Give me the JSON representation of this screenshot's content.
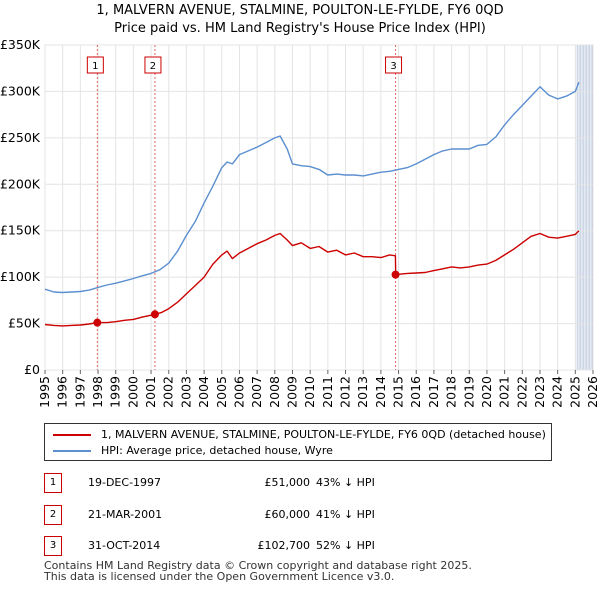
{
  "chart_data": {
    "type": "line",
    "title": "1, MALVERN AVENUE, STALMINE, POULTON-LE-FYLDE, FY6 0QD",
    "subtitle": "Price paid vs. HM Land Registry's House Price Index (HPI)",
    "x_range": [
      1995,
      2026
    ],
    "y_range": [
      0,
      350000
    ],
    "x_ticks": [
      "1995",
      "1996",
      "1997",
      "1998",
      "1999",
      "2000",
      "2001",
      "2002",
      "2003",
      "2004",
      "2005",
      "2006",
      "2007",
      "2008",
      "2009",
      "2010",
      "2011",
      "2012",
      "2013",
      "2014",
      "2015",
      "2016",
      "2017",
      "2018",
      "2019",
      "2020",
      "2021",
      "2022",
      "2023",
      "2024",
      "2025",
      "2026"
    ],
    "y_ticks": [
      {
        "value": 0,
        "label": "£0"
      },
      {
        "value": 50000,
        "label": "£50K"
      },
      {
        "value": 100000,
        "label": "£100K"
      },
      {
        "value": 150000,
        "label": "£150K"
      },
      {
        "value": 200000,
        "label": "£200K"
      },
      {
        "value": 250000,
        "label": "£250K"
      },
      {
        "value": 300000,
        "label": "£300K"
      },
      {
        "value": 350000,
        "label": "£350K"
      }
    ],
    "grid": true,
    "future_shading_from": 2025.1,
    "series": [
      {
        "name": "1, MALVERN AVENUE, STALMINE, POULTON-LE-FYLDE, FY6 0QD (detached house)",
        "color": "#cc0000",
        "points": [
          [
            1995.0,
            49000
          ],
          [
            1995.5,
            48000
          ],
          [
            1996.0,
            47500
          ],
          [
            1996.5,
            48000
          ],
          [
            1997.0,
            48500
          ],
          [
            1997.5,
            49500
          ],
          [
            1997.96,
            51000
          ],
          [
            1998.5,
            51000
          ],
          [
            1999.0,
            52000
          ],
          [
            1999.5,
            53500
          ],
          [
            2000.0,
            54500
          ],
          [
            2000.5,
            57000
          ],
          [
            2001.0,
            59000
          ],
          [
            2001.22,
            60000
          ],
          [
            2001.6,
            62000
          ],
          [
            2002.0,
            66000
          ],
          [
            2002.5,
            73000
          ],
          [
            2003.0,
            82000
          ],
          [
            2003.5,
            91000
          ],
          [
            2004.0,
            100000
          ],
          [
            2004.5,
            114000
          ],
          [
            2005.0,
            124000
          ],
          [
            2005.3,
            128000
          ],
          [
            2005.6,
            120000
          ],
          [
            2006.0,
            126000
          ],
          [
            2006.5,
            131000
          ],
          [
            2007.0,
            136000
          ],
          [
            2007.5,
            140000
          ],
          [
            2008.0,
            145000
          ],
          [
            2008.3,
            147000
          ],
          [
            2008.7,
            140000
          ],
          [
            2009.0,
            134000
          ],
          [
            2009.5,
            137000
          ],
          [
            2010.0,
            131000
          ],
          [
            2010.5,
            133000
          ],
          [
            2011.0,
            127000
          ],
          [
            2011.5,
            129000
          ],
          [
            2012.0,
            124000
          ],
          [
            2012.5,
            126000
          ],
          [
            2013.0,
            122000
          ],
          [
            2013.5,
            122000
          ],
          [
            2014.0,
            121000
          ],
          [
            2014.5,
            124000
          ],
          [
            2014.82,
            123000
          ],
          [
            2014.84,
            102700
          ],
          [
            2015.5,
            104000
          ],
          [
            2016.0,
            104500
          ],
          [
            2016.5,
            105000
          ],
          [
            2017.0,
            107000
          ],
          [
            2017.5,
            109000
          ],
          [
            2018.0,
            111000
          ],
          [
            2018.5,
            110000
          ],
          [
            2019.0,
            111000
          ],
          [
            2019.5,
            113000
          ],
          [
            2020.0,
            114000
          ],
          [
            2020.5,
            118000
          ],
          [
            2021.0,
            124000
          ],
          [
            2021.5,
            130000
          ],
          [
            2022.0,
            137000
          ],
          [
            2022.5,
            144000
          ],
          [
            2023.0,
            147000
          ],
          [
            2023.5,
            143000
          ],
          [
            2024.0,
            142000
          ],
          [
            2024.5,
            144000
          ],
          [
            2025.0,
            146000
          ],
          [
            2025.2,
            150000
          ]
        ]
      },
      {
        "name": "HPI: Average price, detached house, Wyre",
        "color": "#5b8fd0",
        "points": [
          [
            1995.0,
            87000
          ],
          [
            1995.5,
            84000
          ],
          [
            1996.0,
            83500
          ],
          [
            1996.5,
            84000
          ],
          [
            1997.0,
            84500
          ],
          [
            1997.5,
            86000
          ],
          [
            1998.0,
            89000
          ],
          [
            1998.5,
            91500
          ],
          [
            1999.0,
            93500
          ],
          [
            1999.5,
            96000
          ],
          [
            2000.0,
            98500
          ],
          [
            2000.5,
            101500
          ],
          [
            2001.0,
            104000
          ],
          [
            2001.5,
            108000
          ],
          [
            2002.0,
            115000
          ],
          [
            2002.5,
            128000
          ],
          [
            2003.0,
            145000
          ],
          [
            2003.5,
            160000
          ],
          [
            2004.0,
            180000
          ],
          [
            2004.5,
            198000
          ],
          [
            2005.0,
            218000
          ],
          [
            2005.3,
            224000
          ],
          [
            2005.6,
            222000
          ],
          [
            2006.0,
            232000
          ],
          [
            2006.5,
            236000
          ],
          [
            2007.0,
            240000
          ],
          [
            2007.5,
            245000
          ],
          [
            2008.0,
            250000
          ],
          [
            2008.3,
            252000
          ],
          [
            2008.7,
            238000
          ],
          [
            2009.0,
            222000
          ],
          [
            2009.5,
            220000
          ],
          [
            2010.0,
            219000
          ],
          [
            2010.5,
            216000
          ],
          [
            2011.0,
            210000
          ],
          [
            2011.5,
            211000
          ],
          [
            2012.0,
            210000
          ],
          [
            2012.5,
            210000
          ],
          [
            2013.0,
            209000
          ],
          [
            2013.5,
            211000
          ],
          [
            2014.0,
            213000
          ],
          [
            2014.5,
            214000
          ],
          [
            2015.0,
            216000
          ],
          [
            2015.5,
            218000
          ],
          [
            2016.0,
            222000
          ],
          [
            2016.5,
            227000
          ],
          [
            2017.0,
            232000
          ],
          [
            2017.5,
            236000
          ],
          [
            2018.0,
            238000
          ],
          [
            2018.5,
            238000
          ],
          [
            2019.0,
            238000
          ],
          [
            2019.5,
            242000
          ],
          [
            2020.0,
            243000
          ],
          [
            2020.5,
            251000
          ],
          [
            2021.0,
            264000
          ],
          [
            2021.5,
            275000
          ],
          [
            2022.0,
            285000
          ],
          [
            2022.5,
            295000
          ],
          [
            2023.0,
            305000
          ],
          [
            2023.5,
            296000
          ],
          [
            2024.0,
            292000
          ],
          [
            2024.5,
            295000
          ],
          [
            2025.0,
            300000
          ],
          [
            2025.2,
            310000
          ]
        ]
      }
    ],
    "sales": [
      {
        "label": "1",
        "year": 1997.96,
        "value": 51000
      },
      {
        "label": "2",
        "year": 2001.22,
        "value": 60000
      },
      {
        "label": "3",
        "year": 2014.83,
        "value": 102700
      }
    ]
  },
  "legend": {
    "property_label": "1, MALVERN AVENUE, STALMINE, POULTON-LE-FYLDE, FY6 0QD (detached house)",
    "hpi_label": "HPI: Average price, detached house, Wyre",
    "property_color": "#cc0000",
    "hpi_color": "#5b8fd0"
  },
  "transactions": [
    {
      "num": "1",
      "date": "19-DEC-1997",
      "price": "£51,000",
      "hpi": "43% ↓ HPI"
    },
    {
      "num": "2",
      "date": "21-MAR-2001",
      "price": "£60,000",
      "hpi": "41% ↓ HPI"
    },
    {
      "num": "3",
      "date": "31-OCT-2014",
      "price": "£102,700",
      "hpi": "52% ↓ HPI"
    }
  ],
  "footer": {
    "line1": "Contains HM Land Registry data © Crown copyright and database right 2025.",
    "line2": "This data is licensed under the Open Government Licence v3.0."
  }
}
